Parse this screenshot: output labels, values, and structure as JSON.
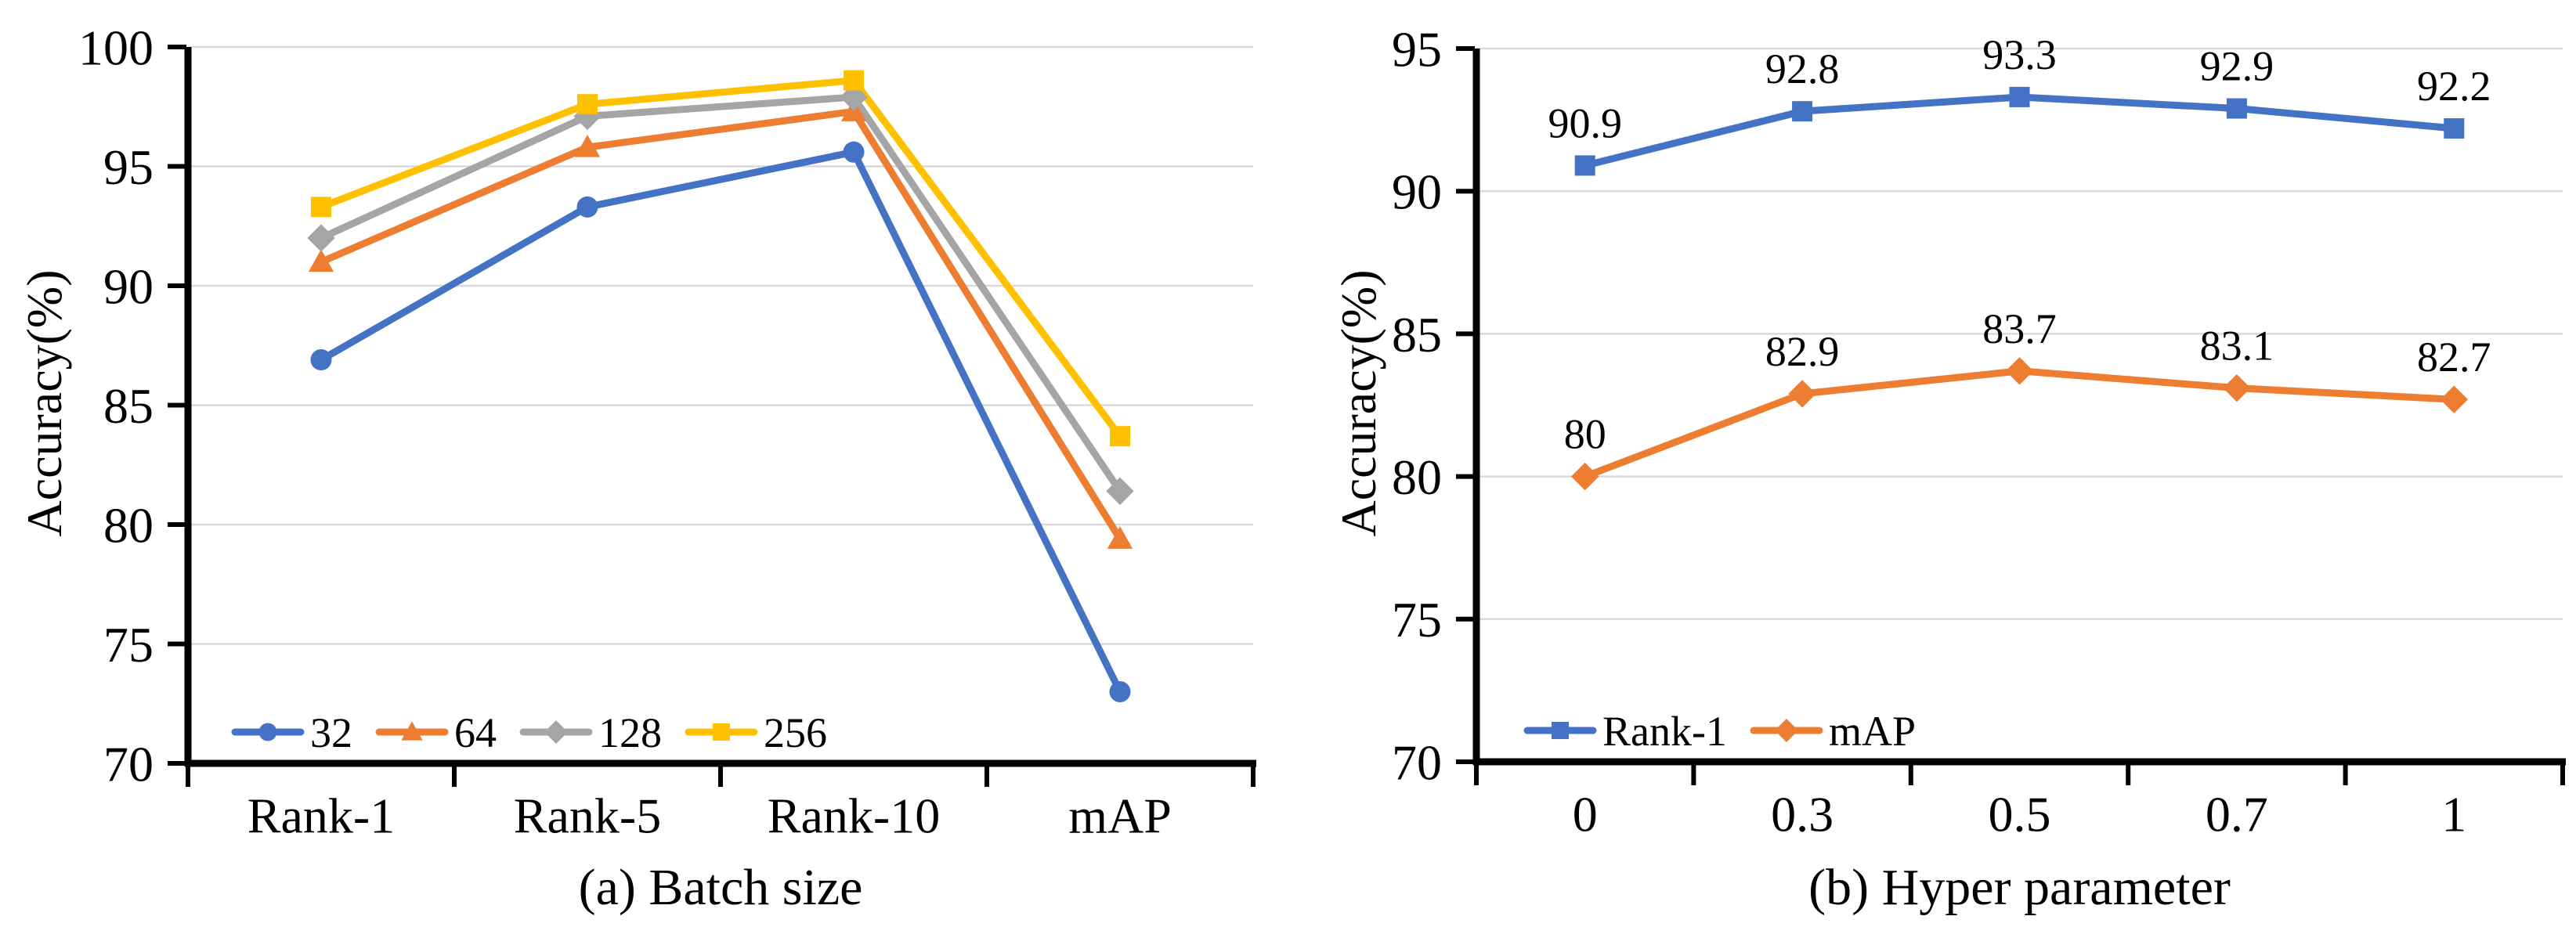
{
  "chart_data": [
    {
      "type": "line",
      "caption": "(a) Batch size",
      "ylabel": "Accuracy(%)",
      "categories": [
        "Rank-1",
        "Rank-5",
        "Rank-10",
        "mAP"
      ],
      "ylim": [
        70,
        100
      ],
      "ytick_step": 5,
      "grid": true,
      "legend_position": "inside-bottom-left",
      "show_data_labels": false,
      "series": [
        {
          "name": "32",
          "color": "#4472C4",
          "marker": "circle",
          "values": [
            86.9,
            93.3,
            95.6,
            73.0
          ]
        },
        {
          "name": "64",
          "color": "#ED7D31",
          "marker": "triangle",
          "values": [
            91.0,
            95.8,
            97.3,
            79.4
          ]
        },
        {
          "name": "128",
          "color": "#A5A5A5",
          "marker": "diamond",
          "values": [
            92.0,
            97.1,
            97.9,
            81.4
          ]
        },
        {
          "name": "256",
          "color": "#FFC000",
          "marker": "square",
          "values": [
            93.3,
            97.6,
            98.6,
            83.7
          ]
        }
      ]
    },
    {
      "type": "line",
      "caption": "(b) Hyper parameter",
      "ylabel": "Accuracy(%)",
      "categories": [
        "0",
        "0.3",
        "0.5",
        "0.7",
        "1"
      ],
      "ylim": [
        70,
        95
      ],
      "ytick_step": 5,
      "grid": true,
      "legend_position": "inside-bottom-left",
      "show_data_labels": true,
      "series": [
        {
          "name": "Rank-1",
          "color": "#4472C4",
          "marker": "square",
          "values": [
            90.9,
            92.8,
            93.3,
            92.9,
            92.2
          ],
          "labels": [
            "90.9",
            "92.8",
            "93.3",
            "92.9",
            "92.2"
          ]
        },
        {
          "name": "mAP",
          "color": "#ED7D31",
          "marker": "diamond",
          "values": [
            80,
            82.9,
            83.7,
            83.1,
            82.7
          ],
          "labels": [
            "80",
            "82.9",
            "83.7",
            "83.1",
            "82.7"
          ]
        }
      ]
    }
  ],
  "styles": {
    "background": "#ffffff",
    "axis_color": "#000000",
    "gridline_color": "#d9d9d9",
    "text_color": "#000000"
  }
}
